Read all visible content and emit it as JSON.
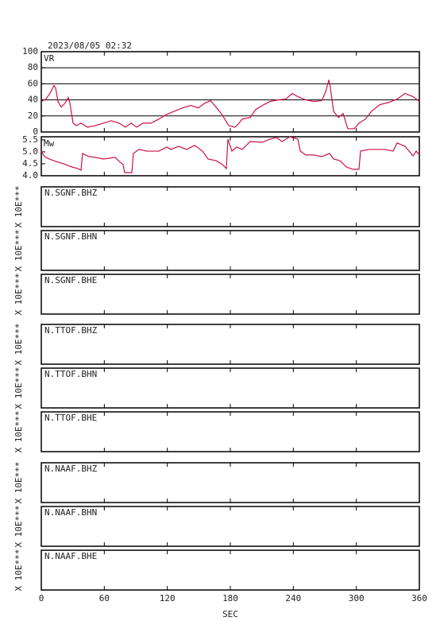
{
  "chart_data": [
    {
      "type": "line",
      "title": "2023/08/05 02:32",
      "ylabel": "VR",
      "color": "#cc1144",
      "grid": true,
      "xlim": [
        0,
        360
      ],
      "ylim": [
        0,
        100
      ],
      "yticks": [
        0,
        20,
        40,
        60,
        80,
        100
      ],
      "x": [
        0,
        4.5,
        9.1,
        12.1,
        13.6,
        15.9,
        18.9,
        22.7,
        25.7,
        27.2,
        30.3,
        33.3,
        37.8,
        43.9,
        51.4,
        59,
        66.6,
        74.1,
        80.2,
        85.5,
        90.8,
        96.8,
        104.4,
        111.9,
        119.5,
        127.1,
        134.6,
        142.2,
        149.7,
        155.8,
        161.1,
        166.4,
        172.4,
        178.5,
        184.5,
        187.6,
        191.3,
        198.9,
        204.2,
        211.8,
        217.8,
        225.4,
        232.9,
        239,
        244.3,
        251.8,
        259.4,
        267,
        270.8,
        273.8,
        275.3,
        278.3,
        282.9,
        287.4,
        291.9,
        298,
        302.5,
        308.6,
        314.6,
        322.2,
        331.3,
        338.8,
        346.4,
        354,
        360
      ],
      "values": [
        38,
        41,
        50,
        58,
        55,
        38,
        31,
        36,
        43,
        36,
        11,
        8,
        11,
        6,
        8,
        11,
        14,
        11,
        6,
        11,
        6,
        11,
        11,
        16,
        22,
        26,
        30,
        33,
        30,
        36,
        39,
        31,
        21,
        8,
        6,
        10,
        16,
        18,
        28,
        34,
        38,
        40,
        41,
        48,
        44,
        40,
        38,
        39,
        50,
        65,
        55,
        26,
        18,
        23,
        4,
        4,
        11,
        16,
        26,
        34,
        37,
        41,
        48,
        44,
        38
      ]
    },
    {
      "type": "line",
      "ylabel": "Mw",
      "color": "#cc1144",
      "grid": false,
      "xlim": [
        0,
        360
      ],
      "ylim": [
        4,
        5.63
      ],
      "yticks": [
        {
          "value": 4,
          "label": "4.0"
        },
        4.5,
        {
          "value": 5,
          "label": "5.0"
        },
        5.5
      ],
      "x": [
        0,
        3,
        7.6,
        13.6,
        21.2,
        28.7,
        34.8,
        37.8,
        39.3,
        45.4,
        51.4,
        59,
        70.3,
        74.1,
        77.9,
        79.4,
        86.2,
        87.7,
        93,
        100.6,
        111.9,
        119.5,
        123.3,
        130.8,
        138.4,
        146,
        153.5,
        158.8,
        166.4,
        172.4,
        176.2,
        177.7,
        181.5,
        186,
        191.3,
        198.9,
        210.3,
        217.8,
        223.9,
        229.2,
        236.7,
        244.3,
        246.6,
        251.8,
        259.4,
        267,
        274.5,
        278.3,
        284.4,
        290.4,
        296.5,
        302.5,
        304,
        312.4,
        319.9,
        327.5,
        335,
        338.8,
        346.4,
        354,
        357,
        360
      ],
      "values": [
        5.03,
        4.8,
        4.7,
        4.6,
        4.5,
        4.37,
        4.3,
        4.23,
        4.93,
        4.8,
        4.77,
        4.7,
        4.77,
        4.6,
        4.47,
        4.13,
        4.13,
        4.93,
        5.1,
        5.03,
        5.03,
        5.2,
        5.1,
        5.23,
        5.1,
        5.27,
        5.03,
        4.7,
        4.63,
        4.47,
        4.3,
        5.53,
        5.03,
        5.2,
        5.1,
        5.43,
        5.4,
        5.53,
        5.6,
        5.43,
        5.63,
        5.53,
        5.03,
        4.87,
        4.87,
        4.8,
        4.93,
        4.7,
        4.63,
        4.37,
        4.27,
        4.27,
        5.03,
        5.1,
        5.1,
        5.1,
        5.03,
        5.37,
        5.23,
        4.83,
        5.03,
        4.87
      ]
    },
    {
      "type": "waveform",
      "label": "N.SGNF.BHZ",
      "ylabel": "X 10E***",
      "xlim": [
        0,
        360
      ]
    },
    {
      "type": "waveform",
      "label": "N.SGNF.BHN",
      "ylabel": "X 10E***",
      "xlim": [
        0,
        360
      ]
    },
    {
      "type": "waveform",
      "label": "N.SGNF.BHE",
      "ylabel": "X 10E***",
      "xlim": [
        0,
        360
      ]
    },
    {
      "type": "waveform",
      "label": "N.TTOF.BHZ",
      "ylabel": "X 10E***",
      "xlim": [
        0,
        360
      ]
    },
    {
      "type": "waveform",
      "label": "N.TTOF.BHN",
      "ylabel": "X 10E***",
      "xlim": [
        0,
        360
      ]
    },
    {
      "type": "waveform",
      "label": "N.TTOF.BHE",
      "ylabel": "X 10E***",
      "xlim": [
        0,
        360
      ]
    },
    {
      "type": "waveform",
      "label": "N.NAAF.BHZ",
      "ylabel": "X 10E***",
      "xlim": [
        0,
        360
      ]
    },
    {
      "type": "waveform",
      "label": "N.NAAF.BHN",
      "ylabel": "X 10E***",
      "xlim": [
        0,
        360
      ]
    },
    {
      "type": "waveform",
      "label": "N.NAAF.BHE",
      "ylabel": "X 10E***",
      "xlim": [
        0,
        360
      ],
      "xlabel": "SEC",
      "xticks": [
        0,
        60,
        120,
        180,
        240,
        300,
        360
      ]
    }
  ]
}
